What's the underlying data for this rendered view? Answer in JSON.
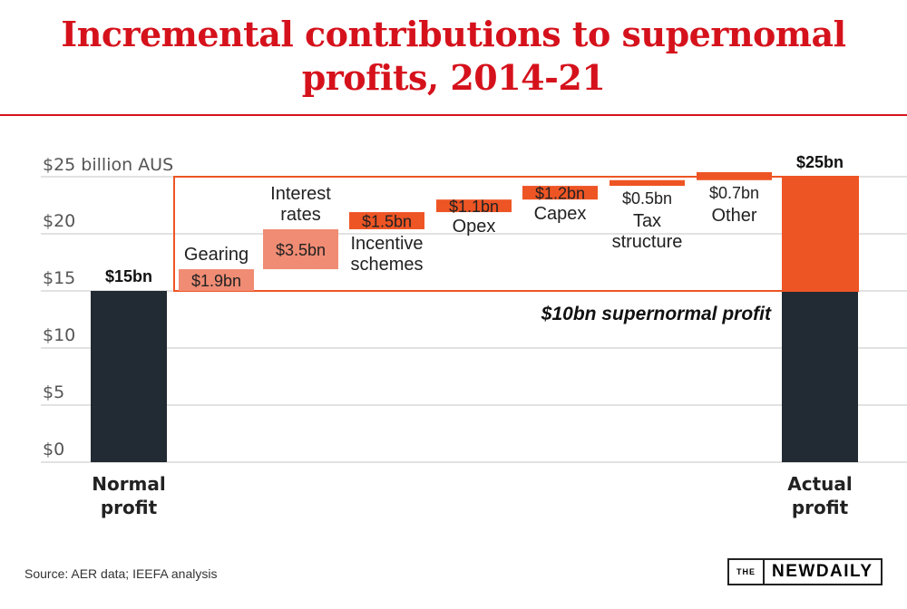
{
  "title": "Incremental contributions to supernomal profits, 2014-21",
  "title_lines": [
    "Incremental contributions to supernomal",
    "profits, 2014-21"
  ],
  "chart_data": {
    "type": "waterfall",
    "y_unit_label": "$25 billion AUS",
    "y_ticks": [
      "$0",
      "$5",
      "$10",
      "$15",
      "$20"
    ],
    "y_tick_values": [
      0,
      5,
      10,
      15,
      20
    ],
    "ylim": [
      0,
      25
    ],
    "grid": true,
    "start": {
      "label": "Normal profit",
      "label_lines": [
        "Normal",
        "profit"
      ],
      "value": 15,
      "value_label": "$15bn"
    },
    "end": {
      "label": "Actual profit",
      "label_lines": [
        "Actual",
        "profit"
      ],
      "value": 25,
      "value_label": "$25bn"
    },
    "steps": [
      {
        "category": "Gearing",
        "category_lines": [
          "Gearing"
        ],
        "value": 1.9,
        "value_label": "$1.9bn",
        "color": "#f08c74"
      },
      {
        "category": "Interest rates",
        "category_lines": [
          "Interest",
          "rates"
        ],
        "value": 3.5,
        "value_label": "$3.5bn",
        "color": "#f08c74"
      },
      {
        "category": "Incentive schemes",
        "category_lines": [
          "Incentive",
          "schemes"
        ],
        "value": 1.5,
        "value_label": "$1.5bn",
        "color": "#ee5524"
      },
      {
        "category": "Opex",
        "category_lines": [
          "Opex"
        ],
        "value": 1.1,
        "value_label": "$1.1bn",
        "color": "#ee5524"
      },
      {
        "category": "Capex",
        "category_lines": [
          "Capex"
        ],
        "value": 1.2,
        "value_label": "$1.2bn",
        "color": "#ee5524"
      },
      {
        "category": "Tax structure",
        "category_lines": [
          "Tax",
          "structure"
        ],
        "value": 0.5,
        "value_label": "$0.5bn",
        "color": "#ee5524"
      },
      {
        "category": "Other",
        "category_lines": [
          "Other"
        ],
        "value": 0.7,
        "value_label": "$0.7bn",
        "color": "#ee5524"
      }
    ],
    "annotation": "$10bn supernormal profit",
    "colors": {
      "base": "#222a33",
      "supernormal": "#ee5524",
      "box": "#ee5524",
      "grid": "#d9d9d9"
    }
  },
  "source": "Source: AER data; IEEFA analysis",
  "logo": {
    "the": "THE",
    "name": "NEWDAILY"
  }
}
